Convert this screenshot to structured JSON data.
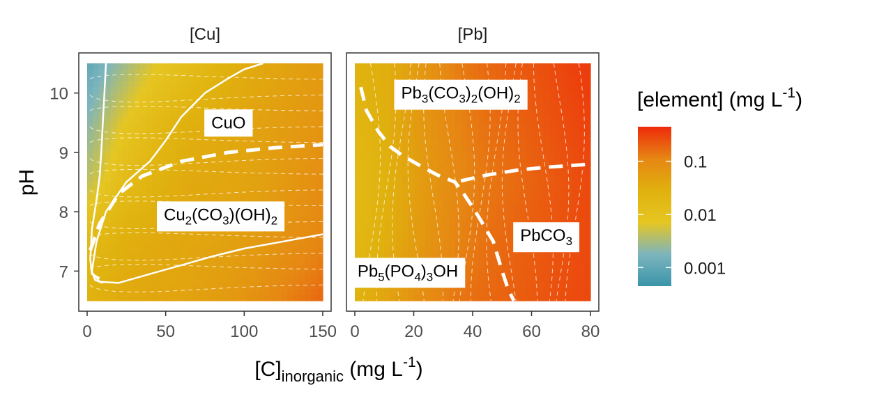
{
  "chart_data": [
    {
      "type": "heatmap",
      "panel": "[Cu]",
      "xlim": [
        0,
        150
      ],
      "ylim": [
        6.5,
        10.5
      ],
      "x_ticks": [
        0,
        50,
        100,
        150
      ],
      "y_ticks": [
        7,
        8,
        9,
        10
      ],
      "regions": [
        {
          "label_main": "CuO",
          "x": 90,
          "y": 9.5
        },
        {
          "label_main": "Cu",
          "label_parts": [
            [
              "Cu",
              ""
            ],
            [
              "2",
              "sub"
            ],
            [
              "(CO",
              ""
            ],
            [
              "3",
              "sub"
            ],
            [
              ")(OH)",
              ""
            ],
            [
              "2",
              "sub"
            ]
          ],
          "x": 85,
          "y": 7.95
        }
      ],
      "phase_boundary": [
        [
          2,
          7.35
        ],
        [
          8,
          7.8
        ],
        [
          20,
          8.3
        ],
        [
          35,
          8.6
        ],
        [
          60,
          8.85
        ],
        [
          90,
          9.0
        ],
        [
          120,
          9.08
        ],
        [
          150,
          9.13
        ]
      ],
      "solid_contours": [
        [
          [
            12,
            10.5
          ],
          [
            11,
            10.0
          ],
          [
            10,
            9.5
          ],
          [
            9,
            9.0
          ],
          [
            8,
            8.6
          ],
          [
            6,
            8.2
          ],
          [
            3,
            7.7
          ],
          [
            2,
            7.2
          ],
          [
            3,
            6.95
          ],
          [
            8,
            6.88
          ]
        ],
        [
          [
            112,
            10.5
          ],
          [
            100,
            10.4
          ],
          [
            90,
            10.25
          ],
          [
            75,
            10.0
          ],
          [
            60,
            9.6
          ],
          [
            50,
            9.2
          ],
          [
            40,
            8.85
          ],
          [
            25,
            8.5
          ],
          [
            12,
            8.0
          ],
          [
            6,
            7.5
          ],
          [
            3,
            7.0
          ],
          [
            5,
            6.85
          ],
          [
            10,
            6.8
          ]
        ],
        [
          [
            4,
            6.95
          ],
          [
            8,
            6.82
          ],
          [
            20,
            6.8
          ],
          [
            40,
            6.95
          ],
          [
            60,
            7.1
          ],
          [
            80,
            7.25
          ],
          [
            100,
            7.38
          ],
          [
            125,
            7.5
          ],
          [
            150,
            7.62
          ]
        ]
      ],
      "value_grid_note": "color encodes log10 concentration",
      "color_log_values": [
        [
          -3.0,
          -2.6,
          -2.2,
          -1.9,
          -1.6,
          -1.45,
          -1.35,
          -1.25
        ],
        [
          -2.7,
          -2.2,
          -1.8,
          -1.55,
          -1.45,
          -1.35,
          -1.25,
          -1.15
        ],
        [
          -2.4,
          -1.9,
          -1.6,
          -1.45,
          -1.4,
          -1.35,
          -1.2,
          -1.05
        ],
        [
          -1.8,
          -1.55,
          -1.45,
          -1.4,
          -1.35,
          -1.25,
          -1.1,
          -0.95
        ],
        [
          -1.6,
          -1.45,
          -1.4,
          -1.35,
          -1.25,
          -1.1,
          -0.9,
          -0.75
        ]
      ]
    },
    {
      "type": "heatmap",
      "panel": "[Pb]",
      "xlim": [
        0,
        80
      ],
      "ylim": [
        6.5,
        10.5
      ],
      "x_ticks": [
        0,
        20,
        40,
        60,
        80
      ],
      "y_ticks": [
        7,
        8,
        9,
        10
      ],
      "regions": [
        {
          "label_parts": [
            [
              "Pb",
              ""
            ],
            [
              "3",
              "sub"
            ],
            [
              "(CO",
              ""
            ],
            [
              "3",
              "sub"
            ],
            [
              ")",
              ""
            ],
            [
              "2",
              "sub"
            ],
            [
              "(OH)",
              ""
            ],
            [
              "2",
              "sub"
            ]
          ],
          "x": 36,
          "y": 10.0
        },
        {
          "label_parts": [
            [
              "PbCO",
              ""
            ],
            [
              "3",
              "sub"
            ]
          ],
          "x": 65,
          "y": 7.6
        },
        {
          "label_parts": [
            [
              "Pb",
              ""
            ],
            [
              "5",
              "sub"
            ],
            [
              "(PO",
              ""
            ],
            [
              "4",
              "sub"
            ],
            [
              ")",
              ""
            ],
            [
              "3",
              "sub"
            ],
            [
              "OH",
              ""
            ]
          ],
          "x": 18,
          "y": 7.0
        }
      ],
      "phase_boundary": [
        [
          2,
          10.1
        ],
        [
          4,
          9.7
        ],
        [
          8,
          9.35
        ],
        [
          12,
          9.1
        ],
        [
          16,
          8.95
        ],
        [
          22,
          8.78
        ],
        [
          28,
          8.62
        ],
        [
          34,
          8.5
        ],
        [
          37,
          8.3
        ],
        [
          41,
          8.0
        ],
        [
          47,
          7.5
        ],
        [
          50,
          7.0
        ],
        [
          52,
          6.7
        ],
        [
          54,
          6.5
        ]
      ],
      "phase_boundary_branch": [
        [
          36,
          8.52
        ],
        [
          45,
          8.62
        ],
        [
          55,
          8.7
        ],
        [
          65,
          8.75
        ],
        [
          80,
          8.8
        ]
      ],
      "color_log_values": [
        [
          -1.6,
          -1.5,
          -1.2,
          -0.9,
          -0.75,
          -0.65,
          -0.55,
          -0.45
        ],
        [
          -1.7,
          -1.5,
          -1.2,
          -0.95,
          -0.8,
          -0.7,
          -0.6,
          -0.5
        ],
        [
          -1.8,
          -1.55,
          -1.25,
          -1.0,
          -0.85,
          -0.75,
          -0.65,
          -0.55
        ],
        [
          -1.75,
          -1.5,
          -1.2,
          -0.95,
          -0.8,
          -0.7,
          -0.62,
          -0.55
        ],
        [
          -1.6,
          -1.35,
          -1.05,
          -0.85,
          -0.75,
          -0.68,
          -0.6,
          -0.55
        ]
      ]
    }
  ],
  "axes": {
    "xlabel_main": "[C]",
    "xlabel_sub": "inorganic",
    "xlabel_unit": " (mg L",
    "xlabel_sup": "-1",
    "xlabel_close": ")",
    "ylabel": "pH"
  },
  "strips": {
    "left": "[Cu]",
    "right": "[Pb]"
  },
  "legend": {
    "title_main": "[element] (mg L",
    "title_sup": "-1",
    "title_close": ")",
    "ticks": [
      {
        "label": "0.1",
        "value": 0.1
      },
      {
        "label": "0.01",
        "value": 0.01
      },
      {
        "label": "0.001",
        "value": 0.001
      }
    ],
    "range_log": [
      -3.35,
      -0.35
    ],
    "palette": [
      "#3a94a9",
      "#7db5bd",
      "#e6c622",
      "#e0b10e",
      "#e68613",
      "#ee2a0b"
    ]
  }
}
